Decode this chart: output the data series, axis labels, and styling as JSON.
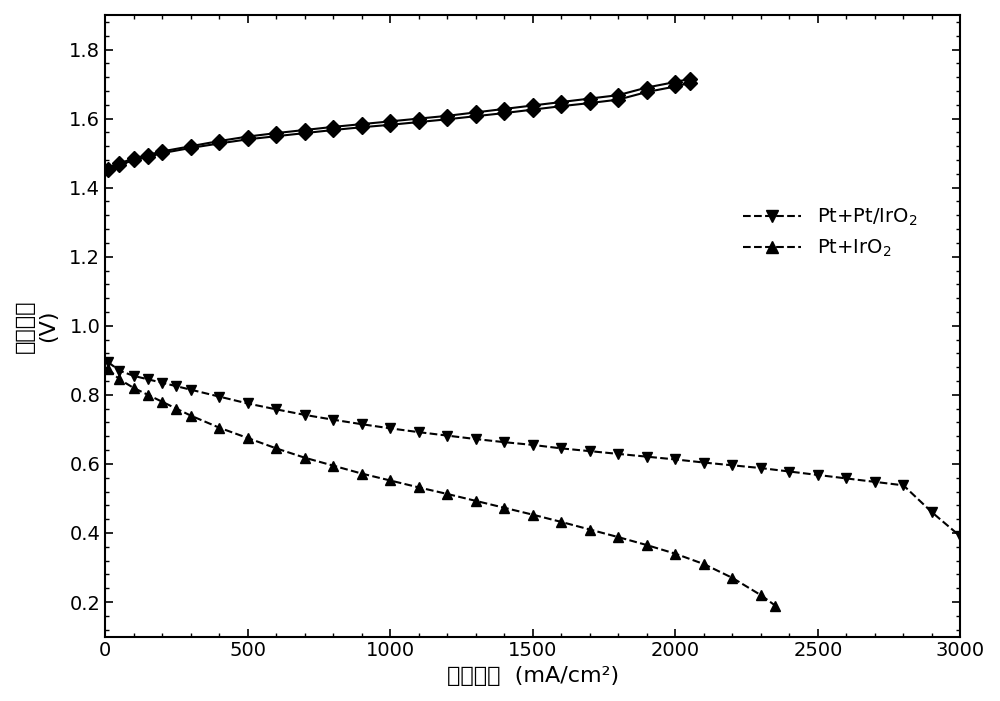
{
  "title": "",
  "xlabel_chinese": "电流密度",
  "xlabel_unit": "  (mA/cm²)",
  "ylabel_chinese": "电池电压",
  "ylabel_unit": "(V)",
  "xlim": [
    0,
    3000
  ],
  "ylim": [
    0.1,
    1.9
  ],
  "yticks": [
    0.2,
    0.4,
    0.6,
    0.8,
    1.0,
    1.2,
    1.4,
    1.6,
    1.8
  ],
  "xticks": [
    0,
    500,
    1000,
    1500,
    2000,
    2500,
    3000
  ],
  "background_color": "#ffffff",
  "line_color": "#000000",
  "series1_label": "Pt+Pt/IrO$_2$",
  "series2_label": "Pt+IrO$_2$",
  "series1_marker": "v",
  "series2_marker": "^",
  "series1_linestyle": "--",
  "series2_linestyle": "--",
  "series1_x": [
    10,
    50,
    100,
    150,
    200,
    250,
    300,
    400,
    500,
    600,
    700,
    800,
    900,
    1000,
    1100,
    1200,
    1300,
    1400,
    1500,
    1600,
    1700,
    1800,
    1900,
    2000,
    2100,
    2200,
    2300,
    2400,
    2500,
    2600,
    2700,
    2800,
    2900,
    3000
  ],
  "series1_y": [
    0.895,
    0.87,
    0.855,
    0.845,
    0.835,
    0.825,
    0.815,
    0.795,
    0.775,
    0.758,
    0.742,
    0.728,
    0.715,
    0.703,
    0.692,
    0.682,
    0.672,
    0.663,
    0.655,
    0.645,
    0.637,
    0.629,
    0.621,
    0.613,
    0.604,
    0.596,
    0.588,
    0.578,
    0.568,
    0.558,
    0.548,
    0.538,
    0.46,
    0.39
  ],
  "series2_x": [
    10,
    50,
    100,
    150,
    200,
    250,
    300,
    400,
    500,
    600,
    700,
    800,
    900,
    1000,
    1100,
    1200,
    1300,
    1400,
    1500,
    1600,
    1700,
    1800,
    1900,
    2000,
    2100,
    2200,
    2300,
    2350
  ],
  "series2_y": [
    0.875,
    0.845,
    0.82,
    0.8,
    0.78,
    0.76,
    0.74,
    0.705,
    0.675,
    0.645,
    0.618,
    0.595,
    0.572,
    0.552,
    0.532,
    0.513,
    0.493,
    0.473,
    0.453,
    0.432,
    0.41,
    0.388,
    0.365,
    0.34,
    0.31,
    0.27,
    0.22,
    0.19
  ],
  "series3_label": "Pt+Pt/IrO$_2$",
  "series3_marker": "D",
  "series3_linestyle": "-",
  "series3_x": [
    10,
    50,
    100,
    150,
    200,
    300,
    400,
    500,
    600,
    700,
    800,
    900,
    1000,
    1100,
    1200,
    1300,
    1400,
    1500,
    1600,
    1700,
    1800,
    1900,
    2000,
    2050
  ],
  "series3_y": [
    1.455,
    1.47,
    1.485,
    1.495,
    1.505,
    1.52,
    1.535,
    1.548,
    1.558,
    1.567,
    1.576,
    1.584,
    1.592,
    1.6,
    1.608,
    1.618,
    1.628,
    1.638,
    1.648,
    1.658,
    1.668,
    1.69,
    1.706,
    1.715
  ],
  "series4_label": "Pt+IrO$_2$",
  "series4_marker": "D",
  "series4_linestyle": "-",
  "series4_x": [
    10,
    50,
    100,
    150,
    200,
    300,
    400,
    500,
    600,
    700,
    800,
    900,
    1000,
    1100,
    1200,
    1300,
    1400,
    1500,
    1600,
    1700,
    1800,
    1900,
    2000,
    2050
  ],
  "series4_y": [
    1.45,
    1.465,
    1.48,
    1.49,
    1.5,
    1.515,
    1.528,
    1.54,
    1.549,
    1.558,
    1.567,
    1.575,
    1.582,
    1.59,
    1.598,
    1.607,
    1.616,
    1.626,
    1.636,
    1.645,
    1.655,
    1.677,
    1.693,
    1.703
  ],
  "legend_fontsize": 14,
  "axis_fontsize": 16,
  "tick_fontsize": 14,
  "markersize": 7,
  "linewidth": 1.5
}
